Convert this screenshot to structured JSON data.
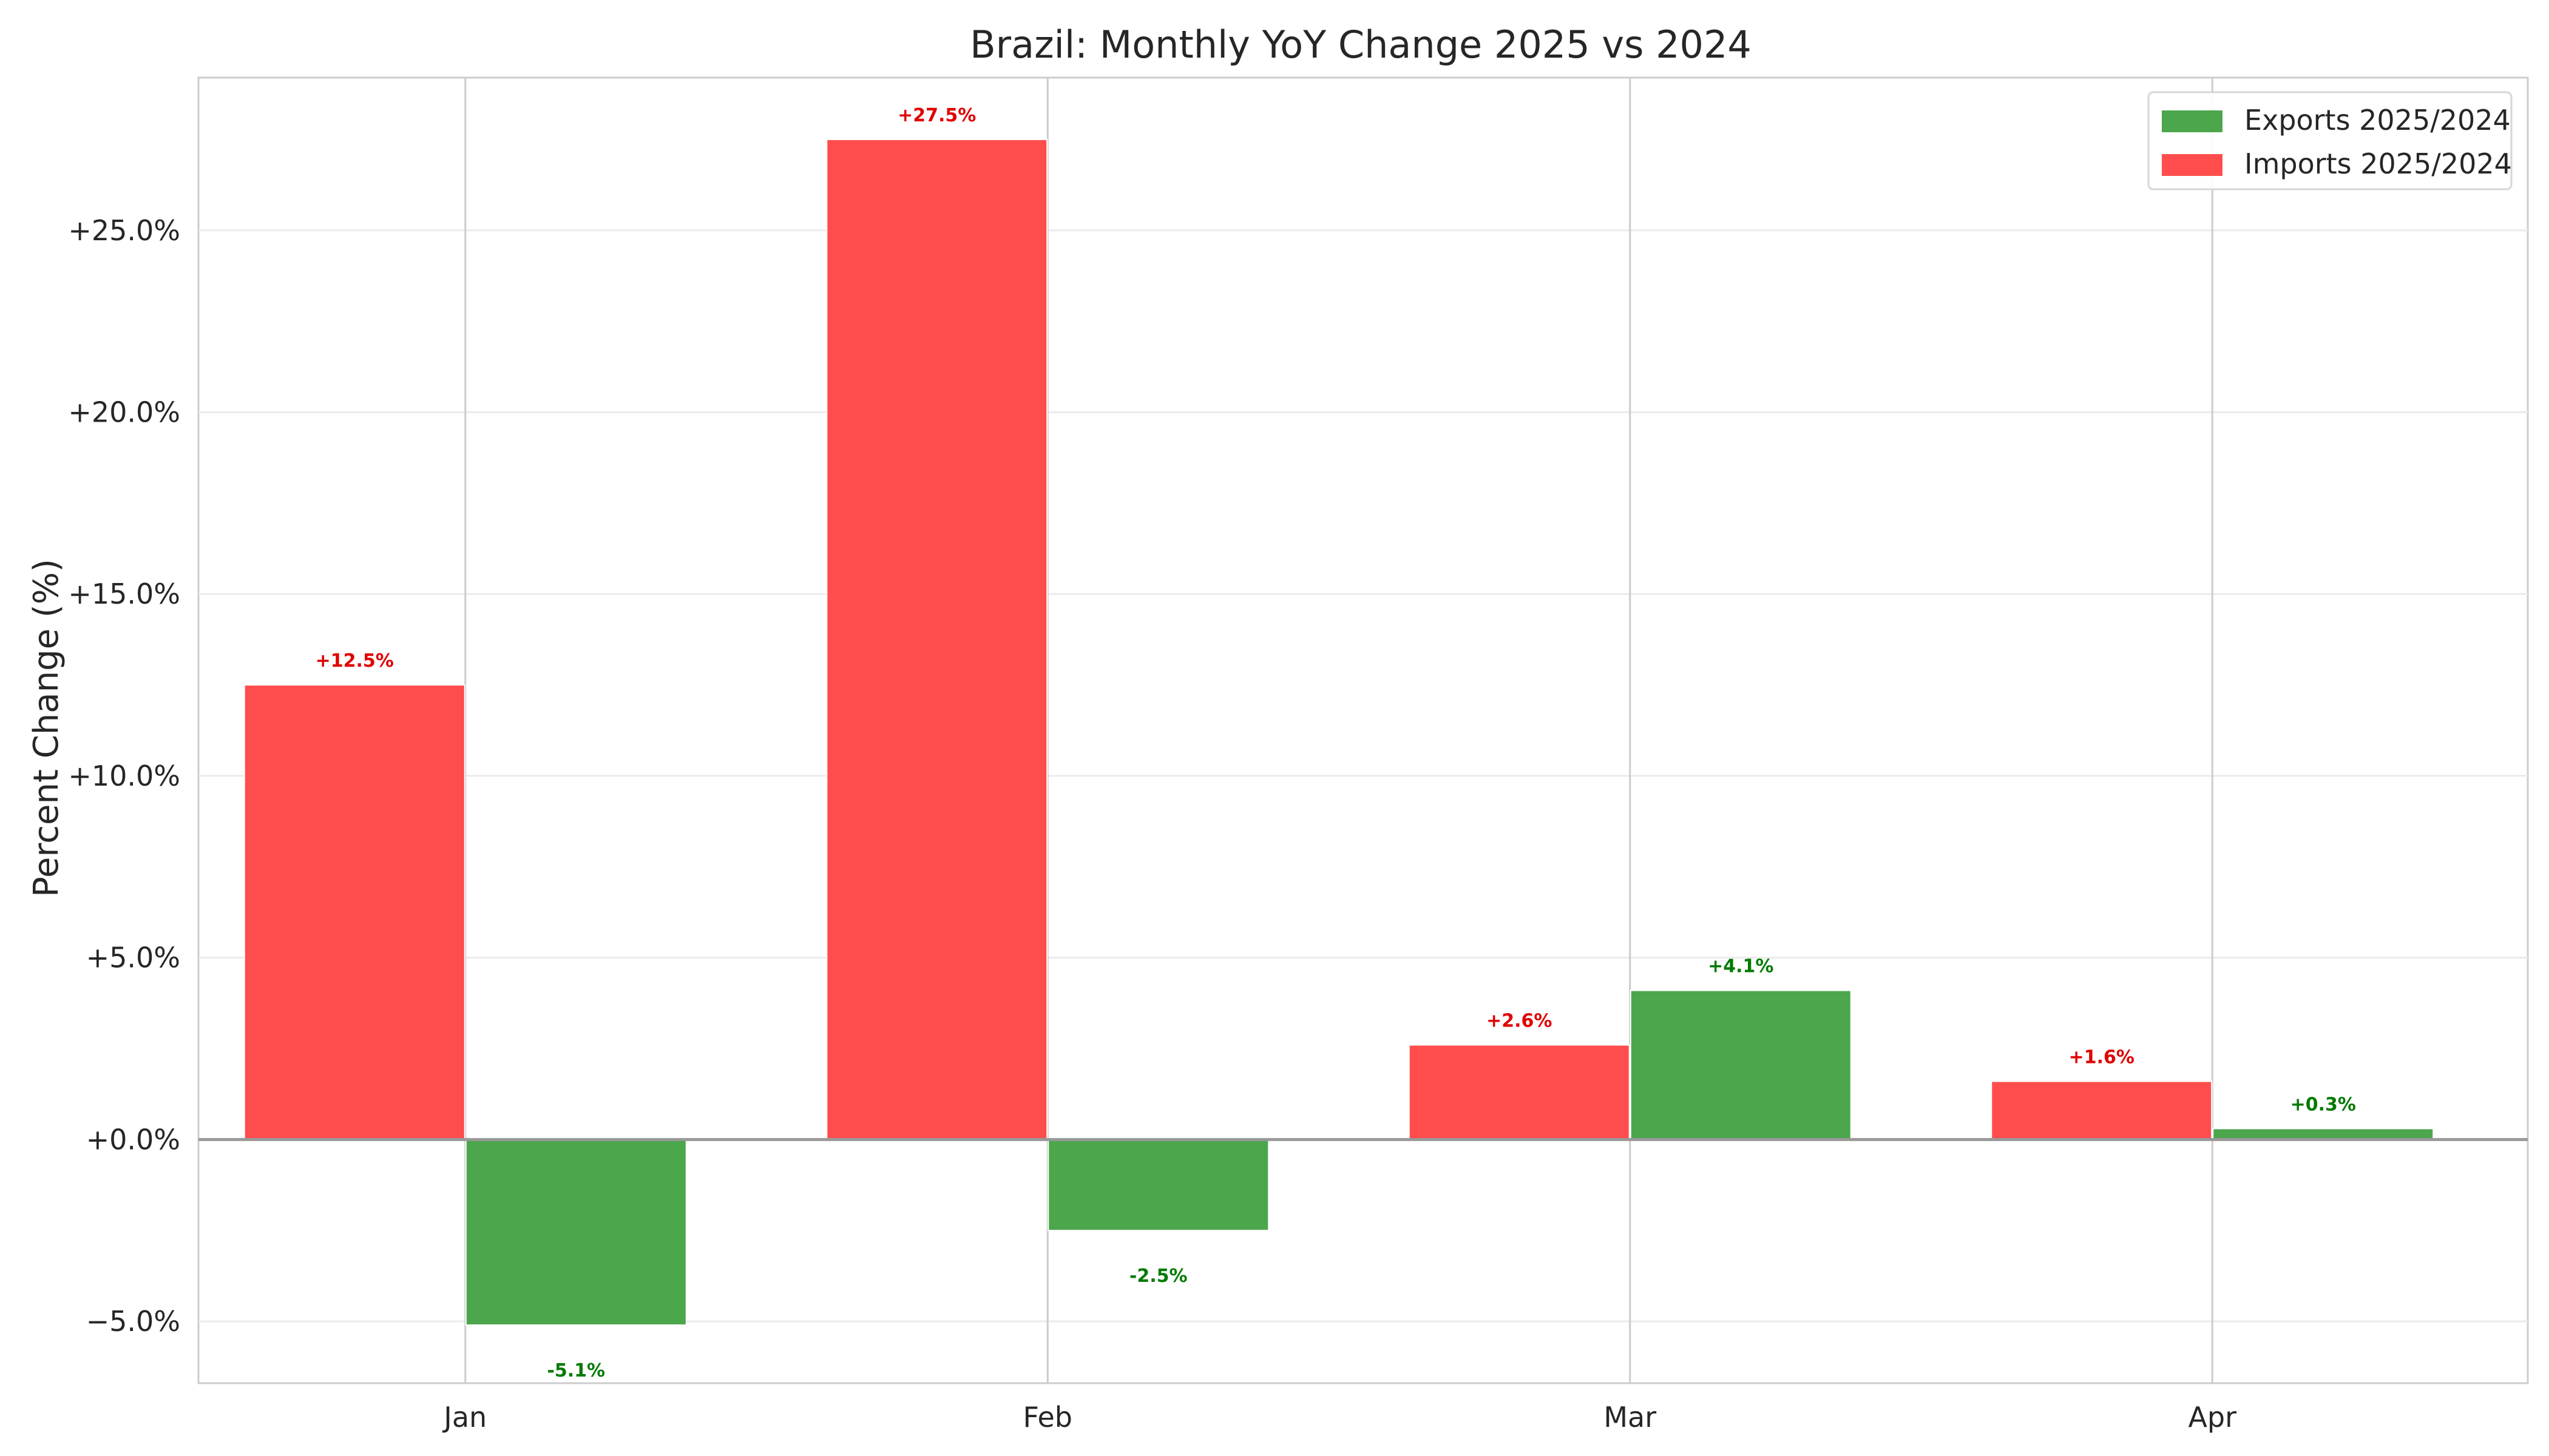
{
  "chart_data": {
    "type": "bar",
    "title": "Brazil: Monthly YoY Change 2025 vs 2024",
    "xlabel": "",
    "ylabel": "Percent Change (%)",
    "categories": [
      "Jan",
      "Feb",
      "Mar",
      "Apr"
    ],
    "series": [
      {
        "name": "Imports 2025/2024",
        "color": "#ff4d4d",
        "values": [
          12.5,
          27.5,
          2.6,
          1.6
        ],
        "labels": [
          "+12.5%",
          "+27.5%",
          "+2.6%",
          "+1.6%"
        ],
        "label_color": "#e00000"
      },
      {
        "name": "Exports 2025/2024",
        "color": "#4ca64c",
        "values": [
          -5.1,
          -2.5,
          4.1,
          0.3
        ],
        "labels": [
          "-5.1%",
          "-2.5%",
          "+4.1%",
          "+0.3%"
        ],
        "label_color": "#007a00"
      }
    ],
    "legend_order": [
      "Exports 2025/2024",
      "Imports 2025/2024"
    ],
    "legend_position": "top-right",
    "ylim": [
      -6.7,
      29.2
    ],
    "yticks": [
      -5,
      0,
      5,
      10,
      15,
      20,
      25
    ],
    "ytick_labels": [
      "−5.0%",
      "+0.0%",
      "+5.0%",
      "+10.0%",
      "+15.0%",
      "+20.0%",
      "+25.0%"
    ],
    "grid": true
  }
}
